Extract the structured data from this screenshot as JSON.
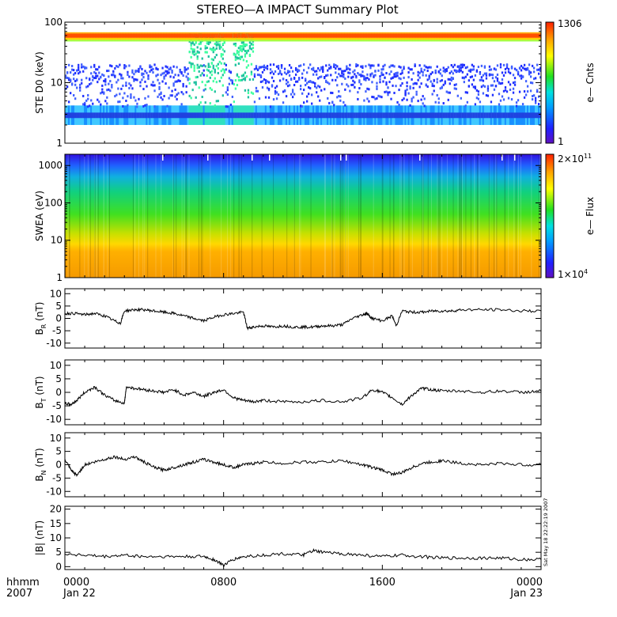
{
  "title": "STEREO—A IMPACT Summary Plot",
  "timestamp": "Sat May 18 22:22:19 2007",
  "footer": {
    "left_top": "hhmm",
    "left_bottom": "2007",
    "x_ticks": [
      {
        "t": 0,
        "top": "0000",
        "bottom": "Jan 22"
      },
      {
        "t": 8,
        "top": "0800",
        "bottom": ""
      },
      {
        "t": 16,
        "top": "1600",
        "bottom": ""
      },
      {
        "t": 24,
        "top": "0000",
        "bottom": "Jan 23"
      }
    ]
  },
  "chart_data": [
    {
      "type": "heatmap",
      "id": "ste",
      "ylabel": "STE D0 (keV)",
      "yscale": "log",
      "ylim": [
        1,
        100
      ],
      "y_ticks": [
        {
          "v": 1,
          "label": "1"
        },
        {
          "v": 10,
          "label": "10"
        },
        {
          "v": 100,
          "label": "100"
        }
      ],
      "xlim": [
        0,
        24
      ],
      "colorbar": {
        "max_label": "1306",
        "min_label": "1",
        "label": "e— Cnts"
      },
      "bands": [
        {
          "y_range": [
            55,
            65
          ],
          "level": "red-orange",
          "note": "persistent high-count band"
        },
        {
          "y_range": [
            2,
            4
          ],
          "level": "light blue"
        },
        {
          "y_range": [
            4,
            20
          ],
          "level": "blue, sparse"
        }
      ],
      "bursts_hours": [
        [
          6.2,
          6.9
        ],
        [
          7.0,
          8.0
        ],
        [
          8.4,
          9.5
        ]
      ]
    },
    {
      "type": "heatmap",
      "id": "swea",
      "ylabel": "SWEA (eV)",
      "yscale": "log",
      "ylim": [
        1,
        2000
      ],
      "y_ticks": [
        {
          "v": 1,
          "label": "1"
        },
        {
          "v": 10,
          "label": "10"
        },
        {
          "v": 100,
          "label": "100"
        },
        {
          "v": 1000,
          "label": "1000"
        }
      ],
      "xlim": [
        0,
        24
      ],
      "colorbar": {
        "max_label": "2×10",
        "max_exp": "11",
        "min_label": "1×10",
        "min_exp": "4",
        "label": "e— Flux"
      },
      "energy_color_profile": [
        {
          "energy": 1,
          "color": "#f59a00"
        },
        {
          "energy": 5,
          "color": "#ffb000"
        },
        {
          "energy": 8,
          "color": "#ffd800"
        },
        {
          "energy": 15,
          "color": "#c8e000"
        },
        {
          "energy": 50,
          "color": "#40e020"
        },
        {
          "energy": 200,
          "color": "#10d080"
        },
        {
          "energy": 500,
          "color": "#10b0e0"
        },
        {
          "energy": 1000,
          "color": "#2060ff"
        },
        {
          "energy": 2000,
          "color": "#3010e0"
        }
      ]
    },
    {
      "type": "line",
      "id": "br",
      "ylabel_main": "B",
      "ylabel_sub": "R",
      "ylabel_unit": "(nT)",
      "ylim": [
        -12,
        12
      ],
      "y_ticks": [
        -10,
        -5,
        0,
        5,
        10
      ],
      "xlim": [
        0,
        24
      ],
      "x": [
        0,
        0.5,
        1,
        1.5,
        2,
        2.5,
        2.8,
        3,
        3.5,
        4,
        4.5,
        5,
        5.5,
        6,
        6.5,
        7,
        7.5,
        8,
        8.5,
        9,
        9.2,
        9.5,
        10,
        10.5,
        11,
        11.5,
        12,
        12.5,
        13,
        13.5,
        14,
        14.5,
        15,
        15.2,
        15.5,
        16,
        16.5,
        16.7,
        17,
        17.5,
        18,
        18.5,
        19,
        19.5,
        20,
        21,
        22,
        23,
        24
      ],
      "y": [
        2,
        2,
        1.5,
        2,
        1,
        -1,
        -2,
        3,
        3.5,
        3.5,
        3,
        2.5,
        2,
        1,
        0,
        -1,
        0.5,
        1.5,
        2,
        2.5,
        -4,
        -3.5,
        -3,
        -3.5,
        -3,
        -3.5,
        -3.5,
        -3.5,
        -3,
        -3,
        -2.5,
        0,
        1.5,
        2,
        0,
        -1,
        1,
        -3,
        3,
        2.5,
        2.5,
        3,
        3,
        3,
        3.5,
        3.5,
        3.5,
        3,
        3
      ]
    },
    {
      "type": "line",
      "id": "bt",
      "ylabel_main": "B",
      "ylabel_sub": "T",
      "ylabel_unit": "(nT)",
      "ylim": [
        -12,
        12
      ],
      "y_ticks": [
        -10,
        -5,
        0,
        5,
        10
      ],
      "xlim": [
        0,
        24
      ],
      "x": [
        0,
        0.3,
        0.6,
        1,
        1.5,
        2,
        2.5,
        3,
        3.1,
        3.5,
        4,
        4.5,
        5,
        5.5,
        6,
        6.5,
        7,
        7.5,
        8,
        8.5,
        9,
        9.5,
        10,
        11,
        12,
        13,
        14,
        15,
        15.5,
        16,
        16.5,
        17,
        17.5,
        18,
        18.5,
        19,
        20,
        21,
        22,
        23,
        24
      ],
      "y": [
        -4,
        -4.5,
        -3,
        0,
        2,
        -1,
        -3,
        -4,
        2,
        1.5,
        1,
        0.5,
        0,
        1,
        -1,
        0,
        -1.5,
        0,
        1,
        -2,
        -3,
        -3.5,
        -3,
        -3.5,
        -3.5,
        -3,
        -3.5,
        -2,
        1,
        0,
        -2,
        -4.5,
        -1,
        1.5,
        1,
        0.5,
        0.5,
        0,
        0.5,
        0,
        0.5
      ]
    },
    {
      "type": "line",
      "id": "bn",
      "ylabel_main": "B",
      "ylabel_sub": "N",
      "ylabel_unit": "(nT)",
      "ylim": [
        -12,
        12
      ],
      "y_ticks": [
        -10,
        -5,
        0,
        5,
        10
      ],
      "xlim": [
        0,
        24
      ],
      "x": [
        0,
        0.3,
        0.6,
        1,
        1.5,
        2,
        2.5,
        3,
        3.5,
        4,
        4.5,
        5,
        5.5,
        6,
        6.5,
        7,
        7.5,
        8,
        8.5,
        9,
        9.5,
        10,
        11,
        12,
        13,
        14,
        15,
        15.5,
        16,
        16.5,
        17,
        17.5,
        18,
        18.5,
        19,
        20,
        21,
        22,
        23,
        24
      ],
      "y": [
        2,
        -2,
        -4,
        0,
        1,
        2,
        3,
        2,
        3,
        1,
        -1,
        -2,
        -1,
        0,
        1,
        2,
        1,
        0,
        -1,
        0,
        0.5,
        1,
        0.5,
        1,
        1,
        1.5,
        0,
        -1,
        -2,
        -3.5,
        -3,
        -1,
        0.5,
        1,
        1.5,
        0.5,
        0,
        0.5,
        0,
        0
      ]
    },
    {
      "type": "line",
      "id": "bmag",
      "ylabel_main": "|B|",
      "ylabel_sub": "",
      "ylabel_unit": "(nT)",
      "ylim": [
        -1,
        21
      ],
      "y_ticks": [
        0,
        5,
        10,
        15,
        20
      ],
      "xlim": [
        0,
        24
      ],
      "x": [
        0,
        1,
        2,
        3,
        4,
        5,
        6,
        7,
        7.5,
        8,
        8.5,
        9,
        10,
        11,
        12,
        12.5,
        13,
        14,
        15,
        16,
        17,
        18,
        19,
        20,
        21,
        22,
        23,
        24
      ],
      "y": [
        4.5,
        4,
        3.5,
        4,
        3.5,
        3.5,
        3.5,
        3.5,
        2.5,
        0.5,
        2.5,
        3.5,
        4,
        4.5,
        4,
        5.5,
        5,
        4.5,
        4,
        3.5,
        4,
        3.5,
        3,
        3,
        3,
        3,
        2.5,
        2.5
      ]
    }
  ]
}
